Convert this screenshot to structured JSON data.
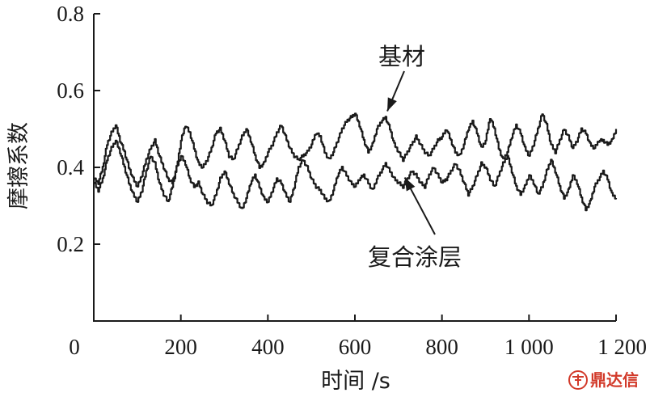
{
  "chart_data": {
    "type": "line",
    "xlabel": "时间 /s",
    "ylabel": "摩擦系数",
    "xlim": [
      0,
      1200
    ],
    "ylim": [
      0.0,
      0.8
    ],
    "x_ticks": [
      0,
      200,
      400,
      600,
      800,
      1000,
      1200
    ],
    "x_tick_labels": [
      "0",
      "200",
      "400",
      "600",
      "800",
      "1 000",
      "1 200"
    ],
    "y_ticks": [
      0.2,
      0.4,
      0.6,
      0.8
    ],
    "y_tick_labels": [
      "0.2",
      "0.4",
      "0.6",
      "0.8"
    ],
    "grid": false,
    "series": [
      {
        "name": "基材",
        "x": [
          0,
          10,
          20,
          30,
          40,
          50,
          60,
          70,
          80,
          90,
          100,
          110,
          120,
          130,
          140,
          150,
          160,
          170,
          180,
          190,
          200,
          210,
          220,
          230,
          240,
          250,
          260,
          270,
          280,
          290,
          300,
          310,
          320,
          330,
          340,
          350,
          360,
          370,
          380,
          390,
          400,
          410,
          420,
          430,
          440,
          450,
          460,
          470,
          480,
          490,
          500,
          510,
          520,
          530,
          540,
          550,
          560,
          570,
          580,
          590,
          600,
          610,
          620,
          630,
          640,
          650,
          660,
          670,
          680,
          690,
          700,
          710,
          720,
          730,
          740,
          750,
          760,
          770,
          780,
          790,
          800,
          810,
          820,
          830,
          840,
          850,
          860,
          870,
          880,
          890,
          900,
          910,
          920,
          930,
          940,
          950,
          960,
          970,
          980,
          990,
          1000,
          1010,
          1020,
          1030,
          1040,
          1050,
          1060,
          1070,
          1080,
          1090,
          1100,
          1110,
          1120,
          1130,
          1140,
          1150,
          1160,
          1170,
          1180,
          1190,
          1200
        ],
        "values": [
          0.37,
          0.36,
          0.4,
          0.46,
          0.49,
          0.51,
          0.47,
          0.44,
          0.4,
          0.37,
          0.35,
          0.38,
          0.42,
          0.45,
          0.47,
          0.43,
          0.4,
          0.37,
          0.36,
          0.4,
          0.47,
          0.51,
          0.49,
          0.45,
          0.41,
          0.4,
          0.42,
          0.45,
          0.49,
          0.5,
          0.47,
          0.43,
          0.42,
          0.45,
          0.48,
          0.5,
          0.47,
          0.43,
          0.4,
          0.41,
          0.44,
          0.46,
          0.49,
          0.51,
          0.48,
          0.45,
          0.43,
          0.42,
          0.43,
          0.44,
          0.46,
          0.49,
          0.48,
          0.44,
          0.42,
          0.44,
          0.47,
          0.5,
          0.52,
          0.53,
          0.54,
          0.51,
          0.47,
          0.44,
          0.46,
          0.5,
          0.52,
          0.53,
          0.5,
          0.46,
          0.44,
          0.42,
          0.44,
          0.46,
          0.48,
          0.46,
          0.44,
          0.43,
          0.45,
          0.47,
          0.48,
          0.5,
          0.47,
          0.44,
          0.43,
          0.46,
          0.5,
          0.52,
          0.49,
          0.45,
          0.47,
          0.53,
          0.5,
          0.45,
          0.42,
          0.44,
          0.48,
          0.51,
          0.49,
          0.45,
          0.43,
          0.46,
          0.5,
          0.54,
          0.51,
          0.46,
          0.44,
          0.47,
          0.5,
          0.48,
          0.45,
          0.47,
          0.5,
          0.49,
          0.46,
          0.45,
          0.47,
          0.47,
          0.46,
          0.47,
          0.5
        ]
      },
      {
        "name": "复合涂层",
        "x": [
          0,
          10,
          20,
          30,
          40,
          50,
          60,
          70,
          80,
          90,
          100,
          110,
          120,
          130,
          140,
          150,
          160,
          170,
          180,
          190,
          200,
          210,
          220,
          230,
          240,
          250,
          260,
          270,
          280,
          290,
          300,
          310,
          320,
          330,
          340,
          350,
          360,
          370,
          380,
          390,
          400,
          410,
          420,
          430,
          440,
          450,
          460,
          470,
          480,
          490,
          500,
          510,
          520,
          530,
          540,
          550,
          560,
          570,
          580,
          590,
          600,
          610,
          620,
          630,
          640,
          650,
          660,
          670,
          680,
          690,
          700,
          710,
          720,
          730,
          740,
          750,
          760,
          770,
          780,
          790,
          800,
          810,
          820,
          830,
          840,
          850,
          860,
          870,
          880,
          890,
          900,
          910,
          920,
          930,
          940,
          950,
          960,
          970,
          980,
          990,
          1000,
          1010,
          1020,
          1030,
          1040,
          1050,
          1060,
          1070,
          1080,
          1090,
          1100,
          1110,
          1120,
          1130,
          1140,
          1150,
          1160,
          1170,
          1180,
          1190,
          1200
        ],
        "values": [
          0.36,
          0.34,
          0.37,
          0.42,
          0.45,
          0.47,
          0.44,
          0.4,
          0.36,
          0.33,
          0.31,
          0.34,
          0.39,
          0.43,
          0.41,
          0.36,
          0.33,
          0.31,
          0.35,
          0.4,
          0.43,
          0.41,
          0.37,
          0.35,
          0.36,
          0.33,
          0.31,
          0.3,
          0.33,
          0.37,
          0.39,
          0.36,
          0.33,
          0.31,
          0.29,
          0.32,
          0.36,
          0.38,
          0.35,
          0.32,
          0.31,
          0.34,
          0.37,
          0.36,
          0.33,
          0.31,
          0.35,
          0.4,
          0.42,
          0.4,
          0.37,
          0.35,
          0.34,
          0.32,
          0.31,
          0.34,
          0.38,
          0.4,
          0.38,
          0.36,
          0.35,
          0.37,
          0.38,
          0.36,
          0.34,
          0.37,
          0.39,
          0.41,
          0.39,
          0.37,
          0.36,
          0.35,
          0.37,
          0.39,
          0.38,
          0.36,
          0.35,
          0.38,
          0.4,
          0.38,
          0.36,
          0.37,
          0.39,
          0.41,
          0.39,
          0.36,
          0.33,
          0.35,
          0.38,
          0.41,
          0.4,
          0.37,
          0.35,
          0.38,
          0.41,
          0.43,
          0.39,
          0.35,
          0.33,
          0.35,
          0.38,
          0.36,
          0.33,
          0.35,
          0.39,
          0.42,
          0.39,
          0.35,
          0.32,
          0.34,
          0.38,
          0.36,
          0.32,
          0.29,
          0.31,
          0.35,
          0.37,
          0.39,
          0.37,
          0.33,
          0.32
        ]
      }
    ],
    "annotations": [
      {
        "text": "基材",
        "series": "基材",
        "arrow_to_x": 680,
        "arrow_to_y": 0.54
      },
      {
        "text": "复合涂层",
        "series": "复合涂层",
        "arrow_to_x": 720,
        "arrow_to_y": 0.38
      }
    ]
  },
  "watermark": {
    "text": "鼎达信",
    "color": "#d23a2a"
  }
}
